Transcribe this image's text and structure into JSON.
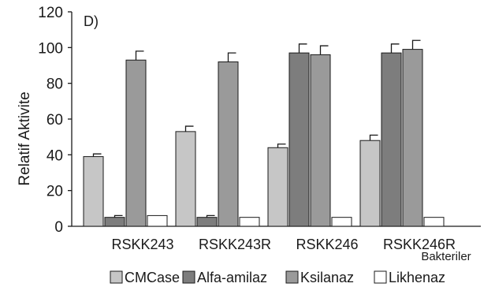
{
  "chart_data": {
    "type": "bar",
    "panel_label": "D)",
    "ylabel": "Relatif  Aktivite",
    "xlabel": "Bakteriler",
    "ylim": [
      0,
      120
    ],
    "yticks": [
      "0",
      "20",
      "40",
      "60",
      "80",
      "100",
      "120"
    ],
    "categories": [
      "RSKK243",
      "RSKK243R",
      "RSKK246",
      "RSKK246R"
    ],
    "series": [
      {
        "name": "CMCase",
        "color": "#c6c6c6",
        "values": [
          39,
          53,
          44,
          48
        ],
        "errors": [
          1.5,
          3,
          2,
          3
        ]
      },
      {
        "name": "Alfa-amilaz",
        "color": "#7d7d7d",
        "values": [
          5,
          5,
          97,
          97
        ],
        "errors": [
          1,
          1,
          5,
          5
        ]
      },
      {
        "name": "Ksilanaz",
        "color": "#9a9a9a",
        "values": [
          93,
          92,
          96,
          99
        ],
        "errors": [
          5,
          5,
          5,
          5
        ]
      },
      {
        "name": "Likhenaz",
        "color": "#ffffff",
        "values": [
          6,
          5,
          5,
          5
        ],
        "errors": [
          0,
          0,
          0,
          0
        ]
      }
    ],
    "legend_position": "bottom",
    "grid": false
  }
}
